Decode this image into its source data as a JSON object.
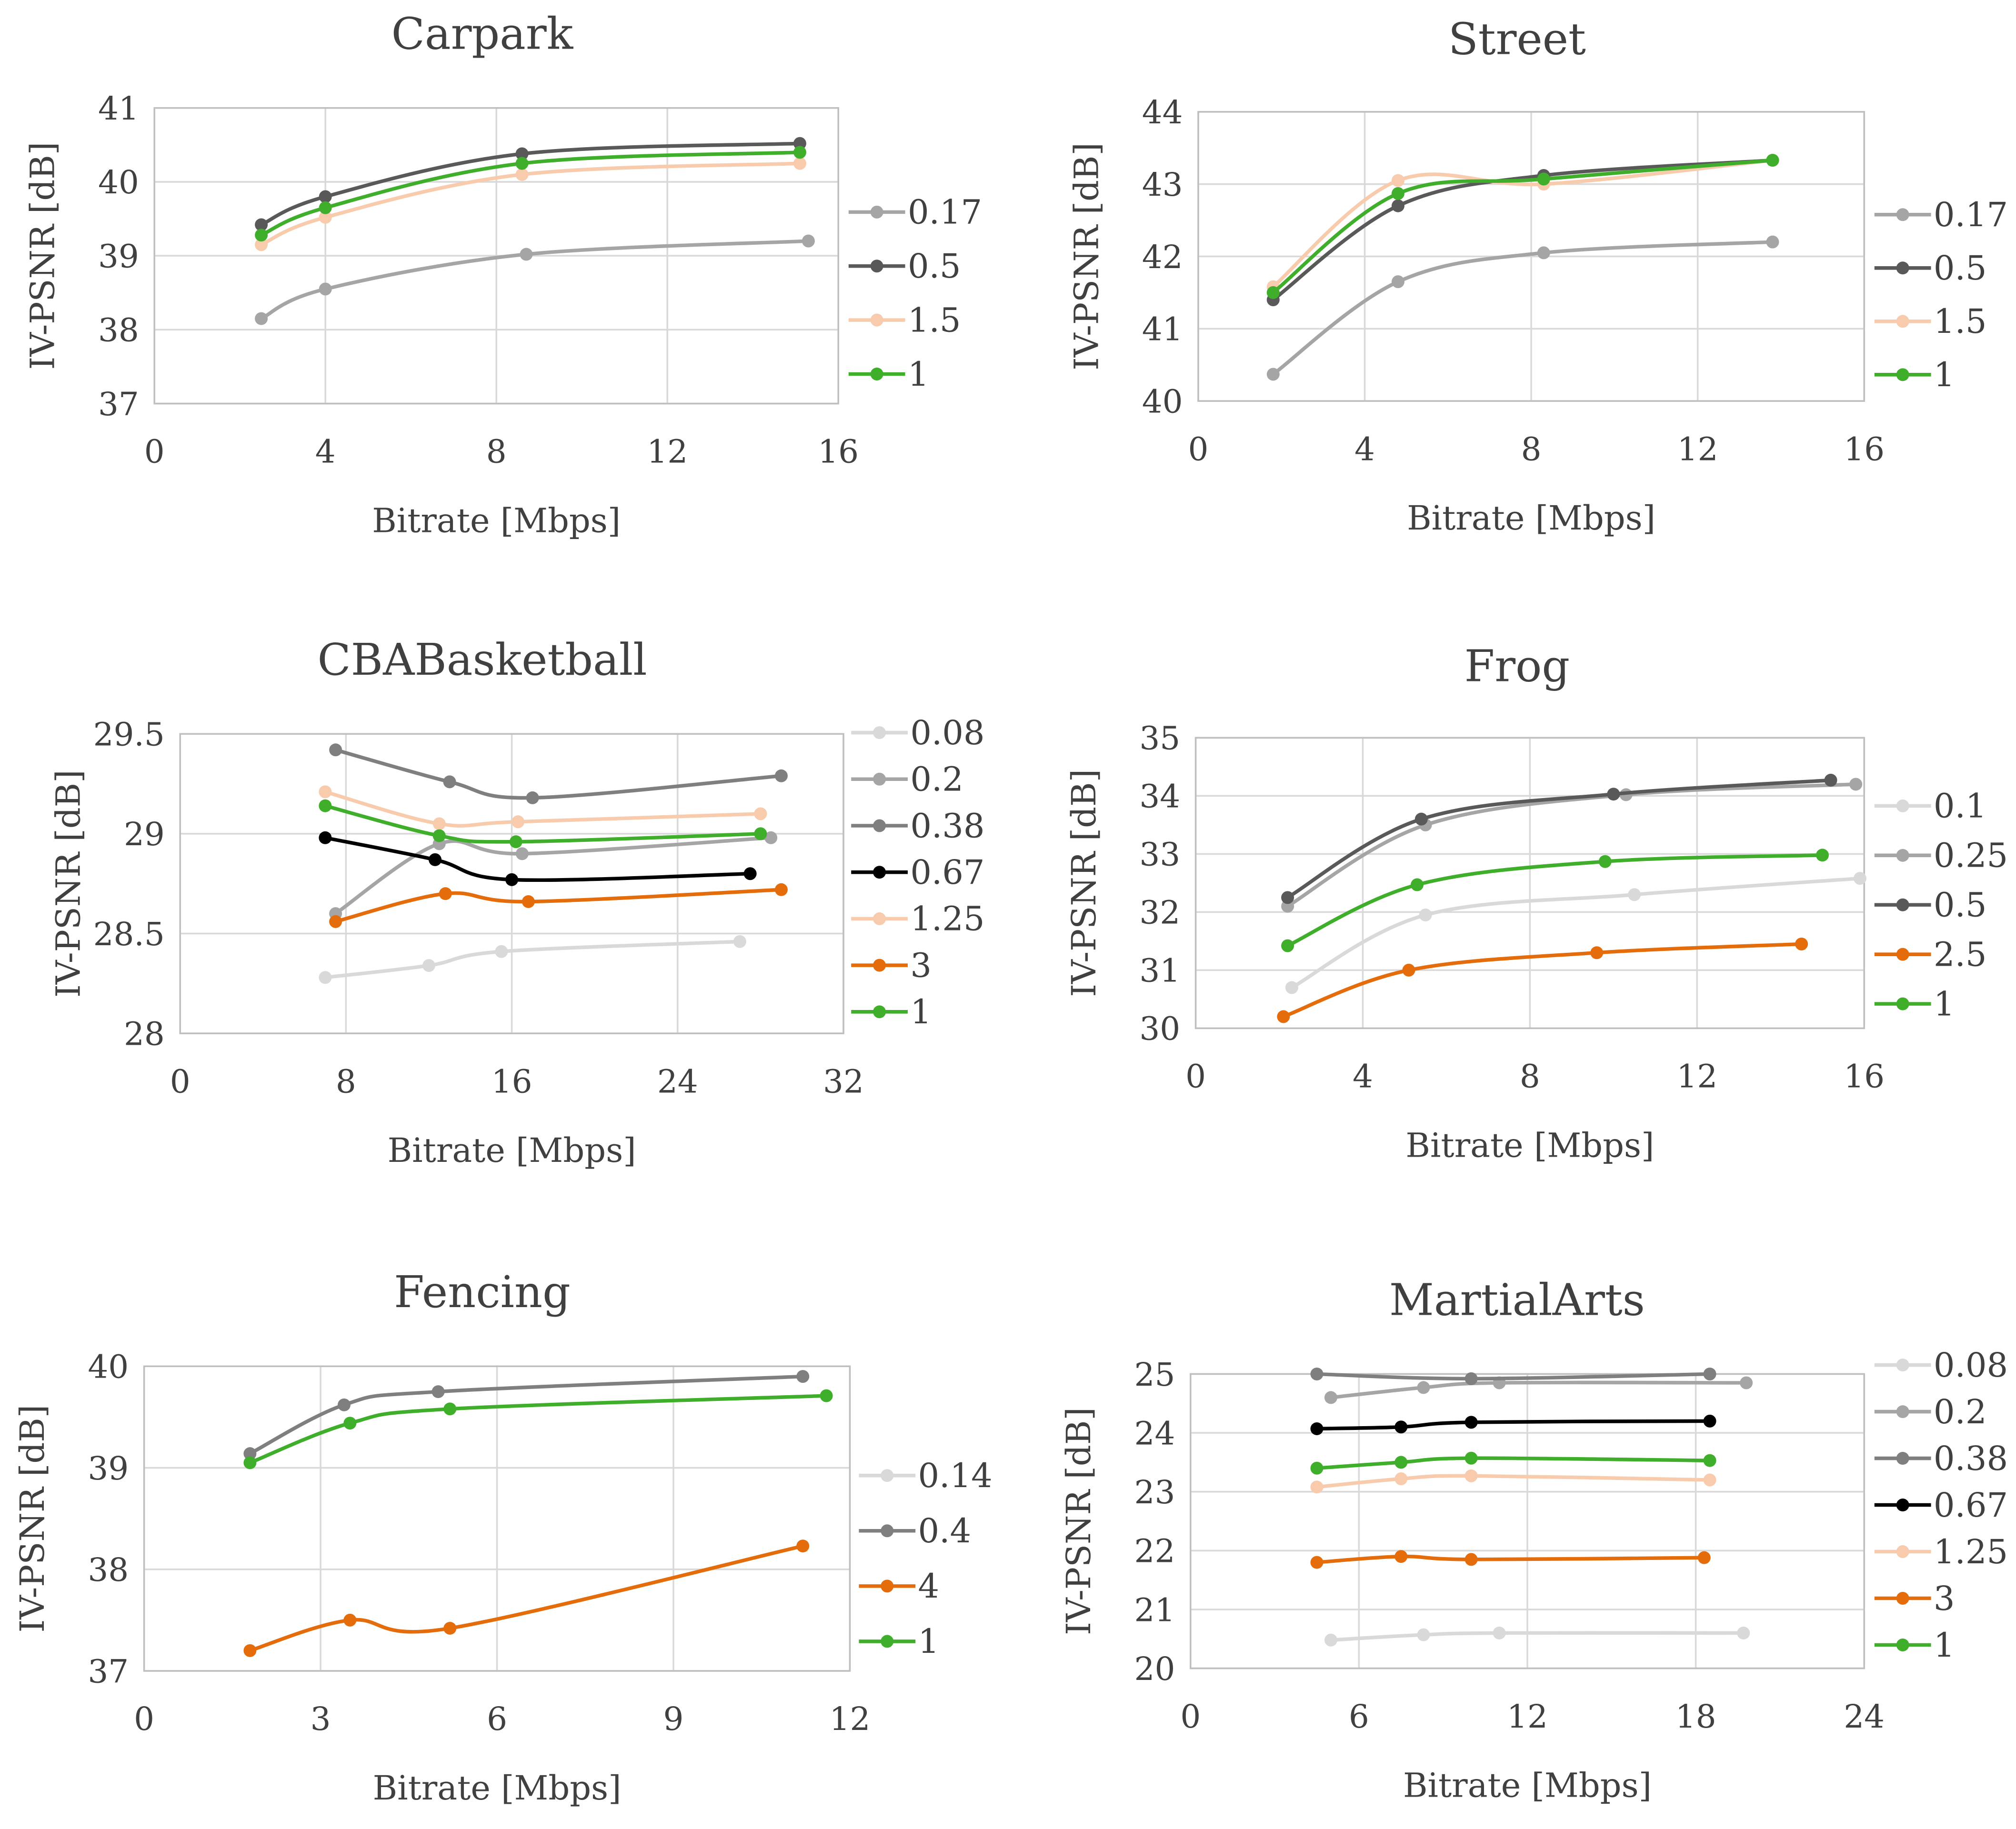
{
  "colors": {
    "grid": "#d9d9d9",
    "axis": "#bfbfbf"
  },
  "chart_data": [
    {
      "type": "line",
      "title": "Carpark",
      "xlabel": "Bitrate [Mbps]",
      "ylabel": "IV-PSNR [dB]",
      "xlim": [
        0,
        16
      ],
      "ylim": [
        37,
        41
      ],
      "xticks": [
        "0",
        "4",
        "8",
        "12",
        "16"
      ],
      "yticks": [
        "37",
        "38",
        "39",
        "40",
        "41"
      ],
      "legend": "right",
      "series": [
        {
          "name": "0.17",
          "color": "#a5a5a5",
          "points": [
            [
              2.5,
              38.15
            ],
            [
              4,
              38.55
            ],
            [
              8.7,
              39.02
            ],
            [
              15.3,
              39.2
            ]
          ]
        },
        {
          "name": "0.5",
          "color": "#595959",
          "points": [
            [
              2.5,
              39.42
            ],
            [
              4,
              39.8
            ],
            [
              8.6,
              40.38
            ],
            [
              15.1,
              40.52
            ]
          ]
        },
        {
          "name": "1.5",
          "color": "#f8cbad",
          "points": [
            [
              2.5,
              39.15
            ],
            [
              4,
              39.52
            ],
            [
              8.6,
              40.1
            ],
            [
              15.1,
              40.25
            ]
          ]
        },
        {
          "name": "1",
          "color": "#3fae2a",
          "points": [
            [
              2.5,
              39.28
            ],
            [
              4,
              39.65
            ],
            [
              8.6,
              40.25
            ],
            [
              15.1,
              40.4
            ]
          ]
        }
      ]
    },
    {
      "type": "line",
      "title": "Street",
      "xlabel": "Bitrate [Mbps]",
      "ylabel": "IV-PSNR [dB]",
      "xlim": [
        0,
        16
      ],
      "ylim": [
        40,
        44
      ],
      "xticks": [
        "0",
        "4",
        "8",
        "12",
        "16"
      ],
      "yticks": [
        "40",
        "41",
        "42",
        "43",
        "44"
      ],
      "legend": "right",
      "series": [
        {
          "name": "0.17",
          "color": "#a5a5a5",
          "points": [
            [
              1.8,
              40.37
            ],
            [
              4.8,
              41.65
            ],
            [
              8.3,
              42.05
            ],
            [
              13.8,
              42.2
            ]
          ]
        },
        {
          "name": "0.5",
          "color": "#595959",
          "points": [
            [
              1.8,
              41.4
            ],
            [
              4.8,
              42.7
            ],
            [
              8.3,
              43.12
            ],
            [
              13.8,
              43.33
            ]
          ]
        },
        {
          "name": "1.5",
          "color": "#f8cbad",
          "points": [
            [
              1.8,
              41.58
            ],
            [
              4.8,
              43.05
            ],
            [
              8.3,
              43.0
            ],
            [
              13.8,
              43.33
            ]
          ]
        },
        {
          "name": "1",
          "color": "#3fae2a",
          "points": [
            [
              1.8,
              41.5
            ],
            [
              4.8,
              42.87
            ],
            [
              8.3,
              43.07
            ],
            [
              13.8,
              43.33
            ]
          ]
        }
      ]
    },
    {
      "type": "line",
      "title": "CBABasketball",
      "xlabel": "Bitrate [Mbps]",
      "ylabel": "IV-PSNR [dB]",
      "xlim": [
        0,
        32
      ],
      "ylim": [
        28,
        29.5
      ],
      "xticks": [
        "0",
        "8",
        "16",
        "24",
        "32"
      ],
      "yticks": [
        "28",
        "28.5",
        "29",
        "29.5"
      ],
      "legend": "right",
      "series": [
        {
          "name": "0.08",
          "color": "#d9d9d9",
          "points": [
            [
              7,
              28.28
            ],
            [
              12,
              28.34
            ],
            [
              15.5,
              28.41
            ],
            [
              27,
              28.46
            ]
          ]
        },
        {
          "name": "0.2",
          "color": "#a5a5a5",
          "points": [
            [
              7.5,
              28.6
            ],
            [
              12.5,
              28.95
            ],
            [
              16.5,
              28.9
            ],
            [
              28.5,
              28.98
            ]
          ]
        },
        {
          "name": "0.38",
          "color": "#7f7f7f",
          "points": [
            [
              7.5,
              29.42
            ],
            [
              13,
              29.26
            ],
            [
              17,
              29.18
            ],
            [
              29,
              29.29
            ]
          ]
        },
        {
          "name": "0.67",
          "color": "#000000",
          "points": [
            [
              7,
              28.98
            ],
            [
              12.3,
              28.87
            ],
            [
              16,
              28.77
            ],
            [
              27.5,
              28.8
            ]
          ]
        },
        {
          "name": "1.25",
          "color": "#f8cbad",
          "points": [
            [
              7,
              29.21
            ],
            [
              12.5,
              29.05
            ],
            [
              16.3,
              29.06
            ],
            [
              28,
              29.1
            ]
          ]
        },
        {
          "name": "3",
          "color": "#e46c0a",
          "points": [
            [
              7.5,
              28.56
            ],
            [
              12.8,
              28.7
            ],
            [
              16.8,
              28.66
            ],
            [
              29,
              28.72
            ]
          ]
        },
        {
          "name": "1",
          "color": "#3fae2a",
          "points": [
            [
              7,
              29.14
            ],
            [
              12.5,
              28.99
            ],
            [
              16.2,
              28.96
            ],
            [
              28,
              29.0
            ]
          ]
        }
      ]
    },
    {
      "type": "line",
      "title": "Frog",
      "xlabel": "Bitrate [Mbps]",
      "ylabel": "IV-PSNR [dB]",
      "xlim": [
        0,
        16
      ],
      "ylim": [
        30,
        35
      ],
      "xticks": [
        "0",
        "4",
        "8",
        "12",
        "16"
      ],
      "yticks": [
        "30",
        "31",
        "32",
        "33",
        "34",
        "35"
      ],
      "legend": "right",
      "series": [
        {
          "name": "0.1",
          "color": "#d9d9d9",
          "points": [
            [
              2.3,
              30.7
            ],
            [
              5.5,
              31.95
            ],
            [
              10.5,
              32.3
            ],
            [
              15.9,
              32.58
            ]
          ]
        },
        {
          "name": "0.25",
          "color": "#a5a5a5",
          "points": [
            [
              2.2,
              32.1
            ],
            [
              5.5,
              33.5
            ],
            [
              10.3,
              34.02
            ],
            [
              15.8,
              34.2
            ]
          ]
        },
        {
          "name": "0.5",
          "color": "#595959",
          "points": [
            [
              2.2,
              32.25
            ],
            [
              5.4,
              33.6
            ],
            [
              10,
              34.03
            ],
            [
              15.2,
              34.27
            ]
          ]
        },
        {
          "name": "2.5",
          "color": "#e46c0a",
          "points": [
            [
              2.1,
              30.2
            ],
            [
              5.1,
              31.0
            ],
            [
              9.6,
              31.3
            ],
            [
              14.5,
              31.45
            ]
          ]
        },
        {
          "name": "1",
          "color": "#3fae2a",
          "points": [
            [
              2.2,
              31.42
            ],
            [
              5.3,
              32.47
            ],
            [
              9.8,
              32.87
            ],
            [
              15,
              32.98
            ]
          ]
        }
      ]
    },
    {
      "type": "line",
      "title": "Fencing",
      "xlabel": "Bitrate [Mbps]",
      "ylabel": "IV-PSNR [dB]",
      "xlim": [
        0,
        12
      ],
      "ylim": [
        37,
        40
      ],
      "xticks": [
        "0",
        "3",
        "6",
        "9",
        "12"
      ],
      "yticks": [
        "37",
        "38",
        "39",
        "40"
      ],
      "legend": "right",
      "series": [
        {
          "name": "0.14",
          "color": "#d9d9d9",
          "points": []
        },
        {
          "name": "0.4",
          "color": "#7f7f7f",
          "points": [
            [
              1.8,
              39.14
            ],
            [
              3.4,
              39.62
            ],
            [
              5,
              39.75
            ],
            [
              11.2,
              39.9
            ]
          ]
        },
        {
          "name": "4",
          "color": "#e46c0a",
          "points": [
            [
              1.8,
              37.2
            ],
            [
              3.5,
              37.5
            ],
            [
              5.2,
              37.42
            ],
            [
              11.2,
              38.23
            ]
          ]
        },
        {
          "name": "1",
          "color": "#3fae2a",
          "points": [
            [
              1.8,
              39.05
            ],
            [
              3.5,
              39.44
            ],
            [
              5.2,
              39.58
            ],
            [
              11.6,
              39.71
            ]
          ]
        }
      ]
    },
    {
      "type": "line",
      "title": "MartialArts",
      "xlabel": "Bitrate [Mbps]",
      "ylabel": "IV-PSNR [dB]",
      "xlim": [
        0,
        24
      ],
      "ylim": [
        20,
        25
      ],
      "xticks": [
        "0",
        "6",
        "12",
        "18",
        "24"
      ],
      "yticks": [
        "20",
        "21",
        "22",
        "23",
        "24",
        "25"
      ],
      "legend": "right",
      "series": [
        {
          "name": "0.08",
          "color": "#d9d9d9",
          "points": [
            [
              5,
              20.48
            ],
            [
              8.3,
              20.57
            ],
            [
              11,
              20.6
            ],
            [
              19.7,
              20.6
            ]
          ]
        },
        {
          "name": "0.2",
          "color": "#a5a5a5",
          "points": [
            [
              5,
              24.6
            ],
            [
              8.3,
              24.77
            ],
            [
              11,
              24.85
            ],
            [
              19.8,
              24.85
            ]
          ]
        },
        {
          "name": "0.38",
          "color": "#7f7f7f",
          "points": [
            [
              4.5,
              25.0
            ],
            [
              10,
              24.92
            ],
            [
              18.5,
              25.0
            ]
          ]
        },
        {
          "name": "0.67",
          "color": "#000000",
          "points": [
            [
              4.5,
              24.07
            ],
            [
              7.5,
              24.1
            ],
            [
              10,
              24.18
            ],
            [
              18.5,
              24.2
            ]
          ]
        },
        {
          "name": "1.25",
          "color": "#f8cbad",
          "points": [
            [
              4.5,
              23.08
            ],
            [
              7.5,
              23.22
            ],
            [
              10,
              23.27
            ],
            [
              18.5,
              23.2
            ]
          ]
        },
        {
          "name": "3",
          "color": "#e46c0a",
          "points": [
            [
              4.5,
              21.8
            ],
            [
              7.5,
              21.9
            ],
            [
              10,
              21.85
            ],
            [
              18.3,
              21.88
            ]
          ]
        },
        {
          "name": "1",
          "color": "#3fae2a",
          "points": [
            [
              4.5,
              23.4
            ],
            [
              7.5,
              23.5
            ],
            [
              10,
              23.57
            ],
            [
              18.5,
              23.53
            ]
          ]
        }
      ]
    }
  ]
}
